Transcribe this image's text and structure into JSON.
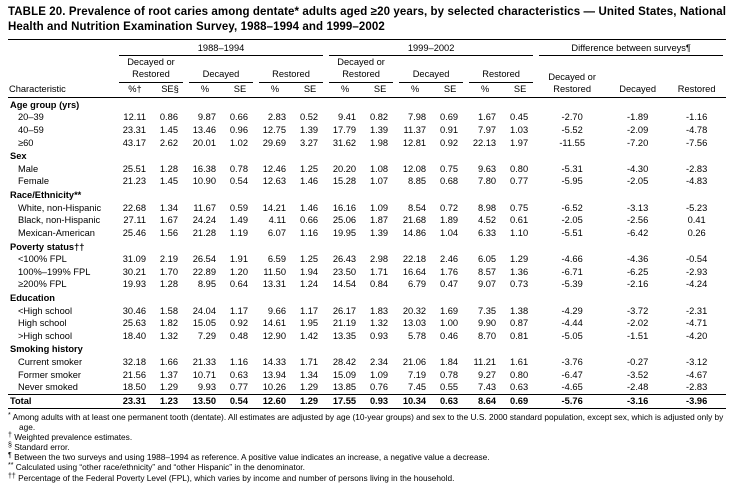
{
  "title": "TABLE 20. Prevalence of root caries among dentate* adults aged ≥20 years, by selected characteristics — United States, National Health and Nutrition Examination Survey, 1988–1994 and 1999–2002",
  "table": {
    "characteristic_label": "Characteristic",
    "survey_headers": [
      "1988–1994",
      "1999–2002"
    ],
    "difference_header": "Difference between surveys¶",
    "measure_headers": [
      "Decayed or Restored",
      "Decayed",
      "Restored"
    ],
    "diff_measure_headers": [
      "Decayed or Restored",
      "Decayed",
      "Restored"
    ],
    "unit_headers_first": [
      "%†",
      "SE§"
    ],
    "unit_headers": [
      "%",
      "SE"
    ],
    "sections": [
      {
        "label": "Age group (yrs)",
        "rows": [
          {
            "label": "20–39",
            "values": [
              "12.11",
              "0.86",
              "9.87",
              "0.66",
              "2.83",
              "0.52",
              "9.41",
              "0.82",
              "7.98",
              "0.69",
              "1.67",
              "0.45",
              "-2.70",
              "-1.89",
              "-1.16"
            ]
          },
          {
            "label": "40–59",
            "values": [
              "23.31",
              "1.45",
              "13.46",
              "0.96",
              "12.75",
              "1.39",
              "17.79",
              "1.39",
              "11.37",
              "0.91",
              "7.97",
              "1.03",
              "-5.52",
              "-2.09",
              "-4.78"
            ]
          },
          {
            "label": "≥60",
            "values": [
              "43.17",
              "2.62",
              "20.01",
              "1.02",
              "29.69",
              "3.27",
              "31.62",
              "1.98",
              "12.81",
              "0.92",
              "22.13",
              "1.97",
              "-11.55",
              "-7.20",
              "-7.56"
            ]
          }
        ]
      },
      {
        "label": "Sex",
        "rows": [
          {
            "label": "Male",
            "values": [
              "25.51",
              "1.28",
              "16.38",
              "0.78",
              "12.46",
              "1.25",
              "20.20",
              "1.08",
              "12.08",
              "0.75",
              "9.63",
              "0.80",
              "-5.31",
              "-4.30",
              "-2.83"
            ]
          },
          {
            "label": "Female",
            "values": [
              "21.23",
              "1.45",
              "10.90",
              "0.54",
              "12.63",
              "1.46",
              "15.28",
              "1.07",
              "8.85",
              "0.68",
              "7.80",
              "0.77",
              "-5.95",
              "-2.05",
              "-4.83"
            ]
          }
        ]
      },
      {
        "label": "Race/Ethnicity**",
        "rows": [
          {
            "label": "White, non-Hispanic",
            "values": [
              "22.68",
              "1.34",
              "11.67",
              "0.59",
              "14.21",
              "1.46",
              "16.16",
              "1.09",
              "8.54",
              "0.72",
              "8.98",
              "0.75",
              "-6.52",
              "-3.13",
              "-5.23"
            ]
          },
          {
            "label": "Black, non-Hispanic",
            "values": [
              "27.11",
              "1.67",
              "24.24",
              "1.49",
              "4.11",
              "0.66",
              "25.06",
              "1.87",
              "21.68",
              "1.89",
              "4.52",
              "0.61",
              "-2.05",
              "-2.56",
              "0.41"
            ]
          },
          {
            "label": "Mexican-American",
            "values": [
              "25.46",
              "1.56",
              "21.28",
              "1.19",
              "6.07",
              "1.16",
              "19.95",
              "1.39",
              "14.86",
              "1.04",
              "6.33",
              "1.10",
              "-5.51",
              "-6.42",
              "0.26"
            ]
          }
        ]
      },
      {
        "label": "Poverty status††",
        "rows": [
          {
            "label": "<100% FPL",
            "values": [
              "31.09",
              "2.19",
              "26.54",
              "1.91",
              "6.59",
              "1.25",
              "26.43",
              "2.98",
              "22.18",
              "2.46",
              "6.05",
              "1.29",
              "-4.66",
              "-4.36",
              "-0.54"
            ]
          },
          {
            "label": "100%–199% FPL",
            "values": [
              "30.21",
              "1.70",
              "22.89",
              "1.20",
              "11.50",
              "1.94",
              "23.50",
              "1.71",
              "16.64",
              "1.76",
              "8.57",
              "1.36",
              "-6.71",
              "-6.25",
              "-2.93"
            ]
          },
          {
            "label": "≥200% FPL",
            "values": [
              "19.93",
              "1.28",
              "8.95",
              "0.64",
              "13.31",
              "1.24",
              "14.54",
              "0.84",
              "6.79",
              "0.47",
              "9.07",
              "0.73",
              "-5.39",
              "-2.16",
              "-4.24"
            ]
          }
        ]
      },
      {
        "label": "Education",
        "rows": [
          {
            "label": "<High school",
            "values": [
              "30.46",
              "1.58",
              "24.04",
              "1.17",
              "9.66",
              "1.17",
              "26.17",
              "1.83",
              "20.32",
              "1.69",
              "7.35",
              "1.38",
              "-4.29",
              "-3.72",
              "-2.31"
            ]
          },
          {
            "label": "High school",
            "values": [
              "25.63",
              "1.82",
              "15.05",
              "0.92",
              "14.61",
              "1.95",
              "21.19",
              "1.32",
              "13.03",
              "1.00",
              "9.90",
              "0.87",
              "-4.44",
              "-2.02",
              "-4.71"
            ]
          },
          {
            "label": ">High school",
            "values": [
              "18.40",
              "1.32",
              "7.29",
              "0.48",
              "12.90",
              "1.42",
              "13.35",
              "0.93",
              "5.78",
              "0.46",
              "8.70",
              "0.81",
              "-5.05",
              "-1.51",
              "-4.20"
            ]
          }
        ]
      },
      {
        "label": "Smoking history",
        "rows": [
          {
            "label": "Current smoker",
            "values": [
              "32.18",
              "1.66",
              "21.33",
              "1.16",
              "14.33",
              "1.71",
              "28.42",
              "2.34",
              "21.06",
              "1.84",
              "11.21",
              "1.61",
              "-3.76",
              "-0.27",
              "-3.12"
            ]
          },
          {
            "label": "Former smoker",
            "values": [
              "21.56",
              "1.37",
              "10.71",
              "0.63",
              "13.94",
              "1.34",
              "15.09",
              "1.09",
              "7.19",
              "0.78",
              "9.27",
              "0.80",
              "-6.47",
              "-3.52",
              "-4.67"
            ]
          },
          {
            "label": "Never smoked",
            "values": [
              "18.50",
              "1.29",
              "9.93",
              "0.77",
              "10.26",
              "1.29",
              "13.85",
              "0.76",
              "7.45",
              "0.55",
              "7.43",
              "0.63",
              "-4.65",
              "-2.48",
              "-2.83"
            ]
          }
        ]
      }
    ],
    "total_row": {
      "label": "Total",
      "values": [
        "23.31",
        "1.23",
        "13.50",
        "0.54",
        "12.60",
        "1.29",
        "17.55",
        "0.93",
        "10.34",
        "0.63",
        "8.64",
        "0.69",
        "-5.76",
        "-3.16",
        "-3.96"
      ]
    }
  },
  "footnotes": [
    {
      "marker": "*",
      "text": "Among adults with at least one permanent tooth (dentate). All estimates are adjusted by age (10-year groups) and sex to the U.S. 2000 standard population, except sex, which is adjusted only by age."
    },
    {
      "marker": "†",
      "text": "Weighted prevalence estimates."
    },
    {
      "marker": "§",
      "text": "Standard error."
    },
    {
      "marker": "¶",
      "text": "Between the two surveys and using 1988–1994 as reference. A positive value indicates an increase, a negative value a decrease."
    },
    {
      "marker": "**",
      "text": "Calculated using “other race/ethnicity” and “other Hispanic” in the denominator."
    },
    {
      "marker": "††",
      "text": "Percentage of the Federal Poverty Level (FPL), which varies by income and number of persons living in the household."
    }
  ]
}
